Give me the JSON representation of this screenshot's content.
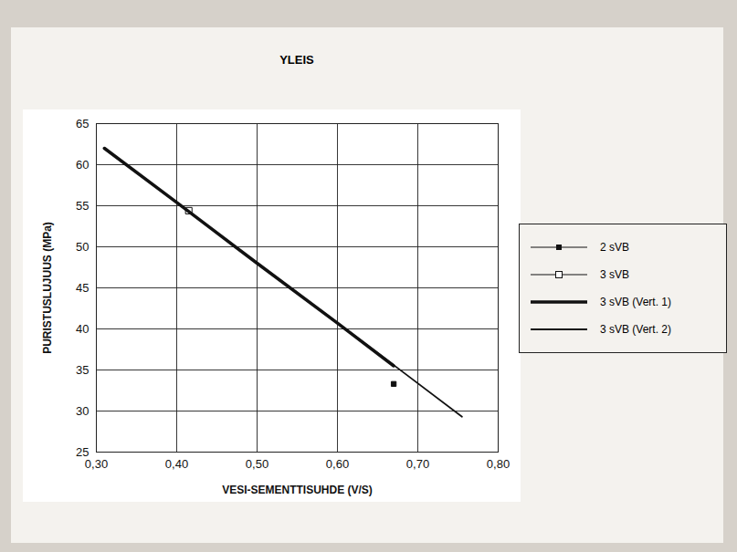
{
  "chart_data": {
    "type": "line",
    "title": "YLEIS",
    "x_label": "VESI-SEMENTTISUHDE (V/S)",
    "y_label": "PURISTUSLUJUUS (MPa)",
    "xlim": [
      0.3,
      0.8
    ],
    "xticks": [
      {
        "value": 0.3,
        "label": "0,30"
      },
      {
        "value": 0.4,
        "label": "0,40"
      },
      {
        "value": 0.5,
        "label": "0,50"
      },
      {
        "value": 0.6,
        "label": "0,60"
      },
      {
        "value": 0.7,
        "label": "0,70"
      },
      {
        "value": 0.8,
        "label": "0,80"
      }
    ],
    "ylim": [
      25,
      65
    ],
    "yticks": [
      25,
      30,
      35,
      40,
      45,
      50,
      55,
      60,
      65
    ],
    "grid": true,
    "legend": "right",
    "series": [
      {
        "name": "2 sVB",
        "type": "scatter",
        "marker": "square",
        "color": "#111111",
        "x": [
          0.67
        ],
        "values": [
          33.3
        ]
      },
      {
        "name": "3 sVB",
        "type": "scatter",
        "marker": "open-square",
        "color": "#111111",
        "x": [
          0.415
        ],
        "values": [
          54.4
        ]
      },
      {
        "name": "3 sVB (Vert. 1)",
        "type": "line",
        "line_style": "solid",
        "color": "#111111",
        "x": [
          0.31,
          0.4,
          0.5,
          0.6,
          0.67
        ],
        "values": [
          62,
          55.4,
          48.0,
          40.7,
          35.5
        ]
      },
      {
        "name": "3 sVB (Vert. 2)",
        "type": "line",
        "line_style": "solid",
        "color": "#111111",
        "x": [
          0.58,
          0.67,
          0.755
        ],
        "values": [
          42.2,
          35.6,
          29.3
        ]
      }
    ]
  }
}
